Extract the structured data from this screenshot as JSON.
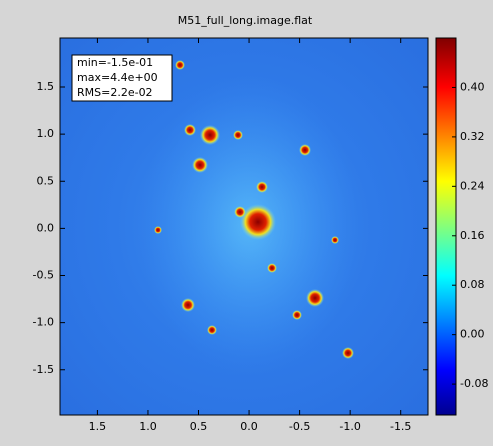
{
  "chart_data": {
    "type": "image",
    "title": "M51_full_long.image.flat",
    "annotation": [
      "min=-1.5e-01",
      "max=4.4e+00",
      "RMS=2.2e-02"
    ],
    "xlim": [
      1.87,
      -1.77
    ],
    "xticks": [
      1.5,
      {
        "value": 1,
        "label": "1.0"
      },
      0.5,
      {
        "value": 0,
        "label": "0.0"
      },
      -0.5,
      {
        "value": -1,
        "label": "-1.0"
      },
      -1.5
    ],
    "ylim": [
      -1.98,
      2.02
    ],
    "yticks": [
      1.5,
      {
        "value": 1,
        "label": "1.0"
      },
      0.5,
      {
        "value": 0,
        "label": "0.0"
      },
      -0.5,
      {
        "value": -1,
        "label": "-1.0"
      },
      -1.5
    ],
    "clim": [
      -0.13,
      0.48
    ],
    "cticks": [
      {
        "value": 0.4,
        "label": "0.40"
      },
      {
        "value": 0.32,
        "label": "0.32"
      },
      {
        "value": 0.24,
        "label": "0.24"
      },
      {
        "value": 0.16,
        "label": "0.16"
      },
      {
        "value": 0.08,
        "label": "0.08"
      },
      {
        "value": 0,
        "label": "0.00"
      },
      {
        "value": -0.08,
        "label": "-0.08"
      }
    ]
  }
}
